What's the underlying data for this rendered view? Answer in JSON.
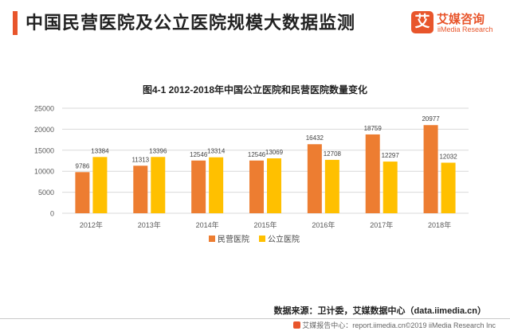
{
  "page": {
    "title": "中国民营医院及公立医院规模大数据监测"
  },
  "logo": {
    "mark": "艾",
    "name_cn": "艾媒咨询",
    "name_en": "iiMedia Research"
  },
  "source_note": "数据来源：卫计委，艾媒数据中心（data.iimedia.cn）",
  "footer_note": "艾媒报告中心：report.iimedia.cn©2019 iiMedia Research Inc",
  "colors": {
    "accent": "#e8552b",
    "private": "#ed7d31",
    "public": "#ffc000",
    "grid": "#d9d9d9",
    "axis_text": "#595959"
  },
  "chart_data": {
    "type": "bar",
    "title": "图4-1 2012-2018年中国公立医院和民营医院数量变化",
    "categories": [
      "2012年",
      "2013年",
      "2014年",
      "2015年",
      "2016年",
      "2017年",
      "2018年"
    ],
    "series": [
      {
        "name": "民营医院",
        "values": [
          9786,
          11313,
          12546,
          12546,
          16432,
          18759,
          20977
        ]
      },
      {
        "name": "公立医院",
        "values": [
          13384,
          13396,
          13314,
          13069,
          12708,
          12297,
          12032
        ]
      }
    ],
    "ylim": [
      0,
      25000
    ],
    "yticks": [
      0,
      5000,
      10000,
      15000,
      20000,
      25000
    ],
    "grid": true,
    "legend": "bottom-center",
    "data_labels": true
  }
}
